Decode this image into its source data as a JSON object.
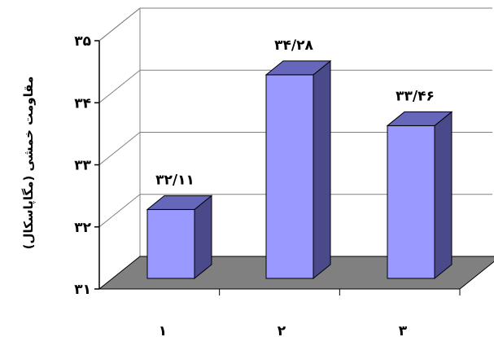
{
  "chart_data": {
    "type": "bar",
    "categories": [
      "۱",
      "۲",
      "۳"
    ],
    "values": [
      32.11,
      34.28,
      33.46
    ],
    "data_labels": [
      "۳۲/۱۱",
      "۳۴/۲۸",
      "۳۳/۴۶"
    ],
    "ylabel": "مقاومت خمشی (مگاپاسکال)",
    "ylim": [
      31,
      35
    ],
    "y_ticks": [
      {
        "value": 31,
        "label": "۳۱"
      },
      {
        "value": 32,
        "label": "۳۲"
      },
      {
        "value": 33,
        "label": "۳۳"
      },
      {
        "value": 34,
        "label": "۳۴"
      },
      {
        "value": 35,
        "label": "۳۵"
      }
    ],
    "grid": true,
    "three_d": true,
    "colors": {
      "bar_front": "#9999ff",
      "bar_side": "#4a4a8a",
      "bar_top": "#6666bb",
      "floor": "#808080",
      "wall_line": "#808080",
      "outline": "#000000"
    }
  }
}
